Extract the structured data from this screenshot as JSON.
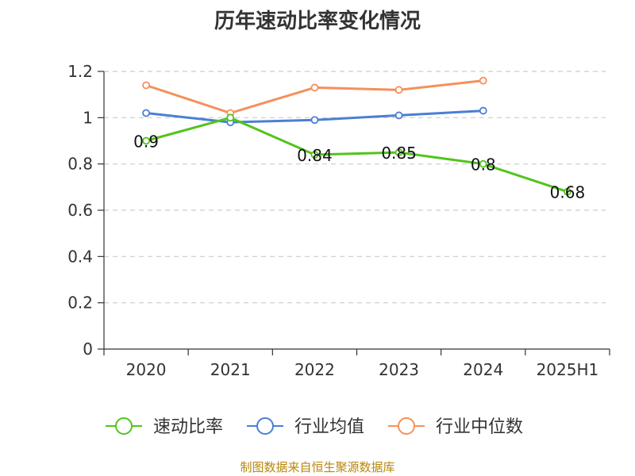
{
  "chart_data": {
    "type": "line",
    "title": "历年速动比率变化情况",
    "categories": [
      "2020",
      "2021",
      "2022",
      "2023",
      "2024",
      "2025H1"
    ],
    "ylim": [
      0,
      1.2
    ],
    "yticks": [
      "0",
      "0.2",
      "0.4",
      "0.6",
      "0.8",
      "1",
      "1.2"
    ],
    "grid": true,
    "legend_position": "bottom",
    "series": [
      {
        "name": "速动比率",
        "color": "#52c41a",
        "values": [
          0.9,
          1.0,
          0.84,
          0.85,
          0.8,
          0.68
        ],
        "labels": [
          "0.9",
          "",
          "0.84",
          "0.85",
          "0.8",
          "0.68"
        ]
      },
      {
        "name": "行业均值",
        "color": "#4a7fd4",
        "values": [
          1.02,
          0.98,
          0.99,
          1.01,
          1.03,
          null
        ]
      },
      {
        "name": "行业中位数",
        "color": "#f5905a",
        "values": [
          1.14,
          1.02,
          1.13,
          1.12,
          1.16,
          null
        ]
      }
    ]
  },
  "footer": {
    "source": "制图数据来自恒生聚源数据库"
  }
}
